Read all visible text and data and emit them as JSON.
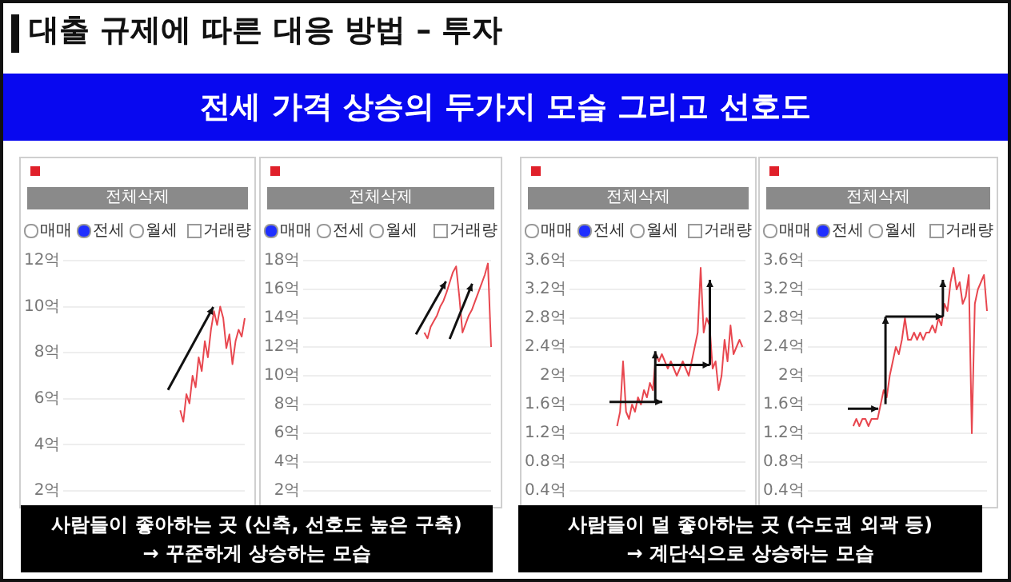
{
  "chart_data": [
    {
      "type": "other",
      "title": "대출 규제에 따른 대응 방법 – 투자",
      "subtitle": "전세 가격 상승의 두가지 모습 그리고 선호도",
      "annotations": [
        "사람들이 좋아하는 곳 (신축, 선호도 높은 구축)\n→ 꾸준하게 상승하는 모습",
        "사람들이 덜 좋아하는 곳 (수도권 외곽 등)\n→ 계단식으로 상승하는 모습"
      ]
    },
    {
      "type": "line",
      "categories": [
        null,
        null,
        null,
        null,
        null,
        null,
        null,
        null,
        null,
        null,
        null,
        null,
        null,
        null,
        null,
        null,
        null,
        null,
        null,
        null,
        null,
        null,
        null,
        null,
        null,
        null,
        null,
        null,
        null,
        null,
        null,
        null,
        null,
        null,
        null,
        null,
        null,
        null,
        null,
        null,
        null,
        null,
        null,
        null,
        null,
        null,
        null,
        null,
        null,
        null,
        null,
        null,
        null,
        null,
        null,
        null,
        null,
        null,
        null,
        null
      ],
      "series": [
        {
          "color": "#e8474f",
          "values": [
            null,
            null,
            null,
            null,
            null,
            null,
            null,
            null,
            null,
            null,
            null,
            null,
            null,
            null,
            null,
            null,
            null,
            null,
            null,
            null,
            null,
            null,
            null,
            null,
            null,
            null,
            null,
            null,
            null,
            null,
            null,
            null,
            null,
            null,
            null,
            null,
            null,
            null,
            5.5,
            5.0,
            6.2,
            5.8,
            7.0,
            6.5,
            7.8,
            7.2,
            8.5,
            7.8,
            9.0,
            9.8,
            9.2,
            10.0,
            9.5,
            8.2,
            8.8,
            7.5,
            8.5,
            9.0,
            8.7,
            9.5
          ]
        }
      ],
      "ylim": [
        2,
        12
      ],
      "yticks": [
        {
          "value": 2,
          "label": "2억"
        },
        {
          "value": 4,
          "label": "4억"
        },
        {
          "value": 6,
          "label": "6억"
        },
        {
          "value": 8,
          "label": "8억"
        },
        {
          "value": 10,
          "label": "10억"
        },
        {
          "value": 12,
          "label": "12억"
        }
      ],
      "grid": "y",
      "tick_labels": "y",
      "marker": "none",
      "line_style": "solid",
      "annotations": [
        "전체삭제",
        "매매",
        "전세",
        "월세",
        "거래량"
      ]
    },
    {
      "type": "line",
      "categories": [
        null,
        null,
        null,
        null,
        null,
        null,
        null,
        null,
        null,
        null,
        null,
        null,
        null,
        null,
        null,
        null,
        null,
        null,
        null,
        null,
        null,
        null,
        null,
        null,
        null,
        null,
        null,
        null,
        null,
        null,
        null,
        null,
        null,
        null,
        null,
        null,
        null,
        null,
        null,
        null,
        null,
        null,
        null,
        null,
        null,
        null,
        null,
        null,
        null,
        null,
        null,
        null,
        null,
        null,
        null,
        null,
        null,
        null,
        null,
        null
      ],
      "series": [
        {
          "color": "#e8474f",
          "values": [
            null,
            null,
            null,
            null,
            null,
            null,
            null,
            null,
            null,
            null,
            null,
            null,
            null,
            null,
            null,
            null,
            null,
            null,
            null,
            null,
            null,
            null,
            null,
            null,
            null,
            null,
            null,
            null,
            null,
            null,
            null,
            null,
            null,
            null,
            null,
            null,
            null,
            null,
            13,
            12.6,
            13.4,
            13.8,
            14.2,
            14.8,
            15.2,
            15.8,
            16.5,
            17.2,
            17.6,
            15.5,
            13.0,
            13.6,
            14.2,
            14.6,
            15.2,
            15.8,
            16.4,
            17.0,
            17.8,
            12.0
          ]
        }
      ],
      "ylim": [
        2,
        18
      ],
      "yticks": [
        {
          "value": 2,
          "label": "2억"
        },
        {
          "value": 4,
          "label": "4억"
        },
        {
          "value": 6,
          "label": "6억"
        },
        {
          "value": 8,
          "label": "8억"
        },
        {
          "value": 10,
          "label": "10억"
        },
        {
          "value": 12,
          "label": "12억"
        },
        {
          "value": 14,
          "label": "14억"
        },
        {
          "value": 16,
          "label": "16억"
        },
        {
          "value": 18,
          "label": "18억"
        }
      ],
      "grid": "y",
      "tick_labels": "y",
      "marker": "none",
      "line_style": "solid",
      "annotations": [
        "전체삭제",
        "매매",
        "전세",
        "월세",
        "거래량"
      ]
    },
    {
      "type": "line",
      "categories": [
        null,
        null,
        null,
        null,
        null,
        null,
        null,
        null,
        null,
        null,
        null,
        null,
        null,
        null,
        null,
        null,
        null,
        null,
        null,
        null,
        null,
        null,
        null,
        null,
        null,
        null,
        null,
        null,
        null,
        null,
        null,
        null,
        null,
        null,
        null,
        null,
        null,
        null,
        null,
        null,
        null,
        null,
        null,
        null,
        null,
        null,
        null,
        null,
        null,
        null,
        null,
        null,
        null,
        null,
        null,
        null,
        null,
        null,
        null,
        null
      ],
      "series": [
        {
          "color": "#e8474f",
          "values": [
            null,
            null,
            null,
            null,
            null,
            null,
            null,
            null,
            null,
            null,
            null,
            null,
            null,
            null,
            null,
            null,
            1.3,
            1.5,
            2.2,
            1.5,
            1.4,
            1.6,
            1.5,
            1.7,
            1.6,
            1.8,
            1.7,
            1.9,
            1.8,
            2.3,
            2.2,
            2.3,
            2.2,
            2.1,
            2.2,
            2.1,
            2.0,
            2.1,
            2.2,
            2.1,
            2.0,
            2.2,
            2.4,
            2.6,
            3.5,
            2.6,
            2.8,
            2.7,
            2.1,
            2.2,
            1.8,
            2.0,
            2.5,
            2.2,
            2.7,
            2.3,
            2.4,
            2.5,
            2.4,
            null
          ]
        }
      ],
      "ylim": [
        0.4,
        3.6
      ],
      "yticks": [
        {
          "value": 0.4,
          "label": "0.4억"
        },
        {
          "value": 0.8,
          "label": "0.8억"
        },
        {
          "value": 1.2,
          "label": "1.2억"
        },
        {
          "value": 1.6,
          "label": "1.6억"
        },
        {
          "value": 2,
          "label": "2억"
        },
        {
          "value": 2.4,
          "label": "2.4억"
        },
        {
          "value": 2.8,
          "label": "2.8억"
        },
        {
          "value": 3.2,
          "label": "3.2억"
        },
        {
          "value": 3.6,
          "label": "3.6억"
        }
      ],
      "grid": "y",
      "tick_labels": "y",
      "marker": "none",
      "line_style": "solid",
      "annotations": [
        "전체삭제",
        "매매",
        "전세",
        "월세",
        "거래량"
      ]
    },
    {
      "type": "line",
      "categories": [
        null,
        null,
        null,
        null,
        null,
        null,
        null,
        null,
        null,
        null,
        null,
        null,
        null,
        null,
        null,
        null,
        null,
        null,
        null,
        null,
        null,
        null,
        null,
        null,
        null,
        null,
        null,
        null,
        null,
        null,
        null,
        null,
        null,
        null,
        null,
        null,
        null,
        null,
        null,
        null,
        null,
        null,
        null,
        null,
        null,
        null,
        null,
        null,
        null,
        null,
        null,
        null,
        null,
        null,
        null,
        null,
        null,
        null,
        null,
        null
      ],
      "series": [
        {
          "color": "#e8474f",
          "values": [
            null,
            null,
            null,
            null,
            null,
            null,
            null,
            null,
            null,
            null,
            null,
            null,
            null,
            null,
            null,
            1.3,
            1.4,
            1.3,
            1.4,
            1.4,
            1.3,
            1.4,
            1.4,
            1.4,
            1.6,
            1.8,
            1.7,
            2.0,
            2.2,
            2.4,
            2.3,
            2.5,
            2.8,
            2.5,
            2.5,
            2.6,
            2.5,
            2.6,
            2.5,
            2.6,
            2.6,
            2.7,
            2.6,
            2.8,
            2.7,
            3.0,
            2.9,
            3.3,
            3.5,
            3.2,
            3.3,
            3.0,
            3.1,
            3.4,
            1.2,
            3.0,
            3.2,
            3.3,
            3.4,
            2.9
          ]
        }
      ],
      "ylim": [
        0.4,
        3.6
      ],
      "yticks": [
        {
          "value": 0.4,
          "label": "0.4억"
        },
        {
          "value": 0.8,
          "label": "0.8억"
        },
        {
          "value": 1.2,
          "label": "1.2억"
        },
        {
          "value": 1.6,
          "label": "1.6억"
        },
        {
          "value": 2,
          "label": "2억"
        },
        {
          "value": 2.4,
          "label": "2.4억"
        },
        {
          "value": 2.8,
          "label": "2.8억"
        },
        {
          "value": 3.2,
          "label": "3.2억"
        },
        {
          "value": 3.6,
          "label": "3.6억"
        }
      ],
      "grid": "y",
      "tick_labels": "y",
      "marker": "none",
      "line_style": "solid",
      "annotations": [
        "전체삭제",
        "매매",
        "전세",
        "월세",
        "거래량"
      ]
    }
  ]
}
